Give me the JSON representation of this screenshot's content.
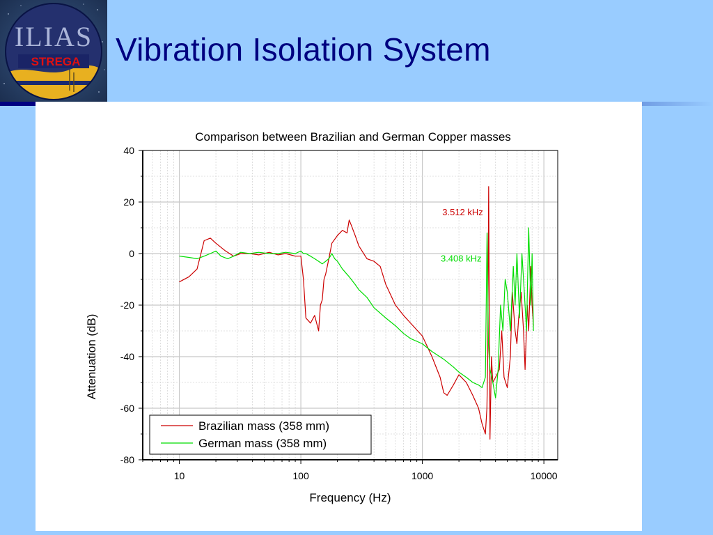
{
  "slide": {
    "title": "Vibration Isolation System",
    "logo": {
      "text": "ILIAS",
      "label": "STREGA"
    }
  },
  "colors": {
    "background": "#99ccff",
    "title": "#000080",
    "brazilian": "#cc0000",
    "german": "#00dd00"
  },
  "chart_data": {
    "type": "line",
    "title": "Comparison between Brazilian and German Copper masses",
    "xlabel": "Frequency (Hz)",
    "ylabel": "Attenuation (dB)",
    "xscale": "log",
    "xlim": [
      5,
      13000
    ],
    "ylim": [
      -80,
      40
    ],
    "xticks": [
      {
        "value": 10,
        "label": "10"
      },
      {
        "value": 100,
        "label": "100"
      },
      {
        "value": 1000,
        "label": "1000"
      },
      {
        "value": 10000,
        "label": "10000"
      }
    ],
    "yticks": [
      {
        "value": 40,
        "label": "40"
      },
      {
        "value": 20,
        "label": "20"
      },
      {
        "value": 0,
        "label": "0"
      },
      {
        "value": -20,
        "label": "-20"
      },
      {
        "value": -40,
        "label": "-40"
      },
      {
        "value": -60,
        "label": "-60"
      },
      {
        "value": -80,
        "label": "-80"
      }
    ],
    "grid": true,
    "legend_position": "bottom-left",
    "annotations": [
      {
        "text": "3.512 kHz",
        "series": "Brazilian mass (358 mm)",
        "x": 3512,
        "y": 16
      },
      {
        "text": "3.408 kHz",
        "series": "German mass (358 mm)",
        "x": 3408,
        "y": -2
      }
    ],
    "series": [
      {
        "name": "Brazilian mass (358 mm)",
        "color": "#cc0000",
        "x": [
          10,
          12,
          14,
          16,
          18,
          20,
          24,
          28,
          32,
          38,
          45,
          55,
          65,
          75,
          90,
          100,
          105,
          110,
          115,
          120,
          130,
          140,
          145,
          150,
          155,
          160,
          170,
          180,
          200,
          220,
          240,
          250,
          260,
          280,
          300,
          350,
          400,
          450,
          500,
          600,
          700,
          800,
          1000,
          1200,
          1400,
          1500,
          1600,
          1800,
          2000,
          2300,
          2600,
          2900,
          3100,
          3300,
          3400,
          3450,
          3512,
          3600,
          3700,
          3800,
          4000,
          4300,
          4500,
          4700,
          5000,
          5300,
          5500,
          5800,
          6000,
          6200,
          6500,
          6800,
          7000,
          7300,
          7500,
          7800,
          8000,
          8200
        ],
        "y": [
          -11,
          -9,
          -6,
          5,
          6,
          4,
          1,
          -1,
          0,
          0,
          -0.5,
          0.5,
          -0.5,
          0,
          -1,
          -1,
          -10,
          -25,
          -26,
          -27,
          -24,
          -30,
          -20,
          -18,
          -10,
          -8,
          -2,
          4,
          7,
          9,
          8,
          13,
          11,
          7,
          3,
          -2,
          -3,
          -5,
          -12,
          -20,
          -24,
          -27,
          -32,
          -40,
          -48,
          -54,
          -55,
          -51,
          -47,
          -50,
          -55,
          -60,
          -66,
          -70,
          -60,
          -40,
          26,
          -72,
          -40,
          -50,
          -48,
          -45,
          -30,
          -48,
          -52,
          -40,
          -15,
          -30,
          -35,
          -25,
          -15,
          -30,
          -45,
          -20,
          -30,
          -5,
          -20,
          -28
        ]
      },
      {
        "name": "German mass (358 mm)",
        "color": "#00dd00",
        "x": [
          10,
          12,
          14,
          16,
          18,
          20,
          22,
          25,
          28,
          32,
          38,
          45,
          55,
          65,
          75,
          90,
          100,
          105,
          110,
          120,
          130,
          140,
          150,
          160,
          170,
          180,
          190,
          200,
          220,
          250,
          280,
          300,
          350,
          400,
          500,
          600,
          700,
          800,
          1000,
          1200,
          1500,
          1800,
          2000,
          2300,
          2600,
          2900,
          3100,
          3300,
          3408,
          3500,
          3600,
          3800,
          4000,
          4200,
          4400,
          4600,
          4800,
          5000,
          5300,
          5600,
          5800,
          6000,
          6300,
          6600,
          6900,
          7200,
          7500,
          7800,
          8000,
          8200
        ],
        "y": [
          -1,
          -1.5,
          -2,
          -1,
          0,
          1,
          -1,
          -2,
          -1,
          0.5,
          0,
          0.5,
          0,
          0,
          0.5,
          0,
          1,
          0,
          0,
          -1,
          -2,
          -3,
          -4,
          -3,
          -2,
          0,
          -2,
          -3,
          -6,
          -9,
          -12,
          -14,
          -17,
          -21,
          -25,
          -28,
          -31,
          -33,
          -35,
          -38,
          -41,
          -44,
          -46,
          -48,
          -50,
          -51,
          -52,
          -48,
          8,
          -35,
          -45,
          -50,
          -56,
          -45,
          -20,
          -30,
          -10,
          -15,
          -30,
          -5,
          -20,
          0,
          -25,
          0,
          -15,
          -30,
          10,
          -20,
          0,
          -30
        ]
      }
    ]
  }
}
